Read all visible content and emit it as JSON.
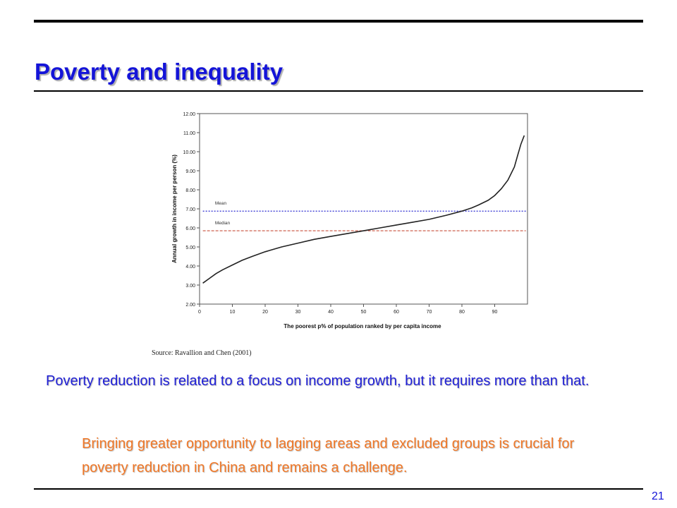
{
  "slide": {
    "title": "Poverty and inequality",
    "source": "Source: Ravallion and Chen (2001)",
    "body_blue": "Poverty reduction is related to a focus on income growth, but it requires more than that.",
    "body_orange": "Bringing greater opportunity to lagging areas and excluded groups is crucial for poverty reduction in China and remains a challenge.",
    "page_number": "21",
    "colors": {
      "title": "#1414d8",
      "body_blue": "#2121d6",
      "body_orange": "#f07828"
    }
  },
  "chart_data": {
    "type": "line",
    "xlabel": "The poorest p% of population ranked by per capita income",
    "ylabel": "Annual growth in income per person (%)",
    "xlim": [
      0,
      100
    ],
    "ylim": [
      2.0,
      12.0
    ],
    "x_ticks": [
      0,
      10,
      20,
      30,
      40,
      50,
      60,
      70,
      80,
      90
    ],
    "x_tick_labels": [
      "0",
      "10",
      "20",
      "30",
      "40",
      "50",
      "60",
      "70",
      "80",
      "90"
    ],
    "y_ticks": [
      2,
      3,
      4,
      5,
      6,
      7,
      8,
      9,
      10,
      11,
      12
    ],
    "y_tick_labels": [
      "2.00",
      "3.00",
      "4.00",
      "5.00",
      "6.00",
      "7.00",
      "8.00",
      "9.00",
      "10.00",
      "11.00",
      "12.00"
    ],
    "grid": false,
    "series": [
      {
        "color": "#222222",
        "x": [
          1,
          3,
          5,
          7,
          10,
          13,
          16,
          20,
          25,
          30,
          35,
          40,
          45,
          50,
          55,
          60,
          65,
          70,
          75,
          80,
          83,
          85,
          88,
          90,
          92,
          94,
          96,
          97,
          98,
          99
        ],
        "y": [
          3.1,
          3.35,
          3.6,
          3.8,
          4.05,
          4.3,
          4.5,
          4.75,
          5.0,
          5.2,
          5.4,
          5.55,
          5.7,
          5.85,
          6.0,
          6.15,
          6.3,
          6.45,
          6.65,
          6.88,
          7.05,
          7.2,
          7.45,
          7.7,
          8.05,
          8.5,
          9.2,
          9.8,
          10.4,
          10.85
        ]
      }
    ],
    "reference_lines": [
      {
        "name": "Mean",
        "y": 6.88,
        "color": "#2a2ad0",
        "style": "dotted"
      },
      {
        "name": "Median",
        "y": 5.85,
        "color": "#c8503c",
        "style": "dashed"
      }
    ]
  }
}
